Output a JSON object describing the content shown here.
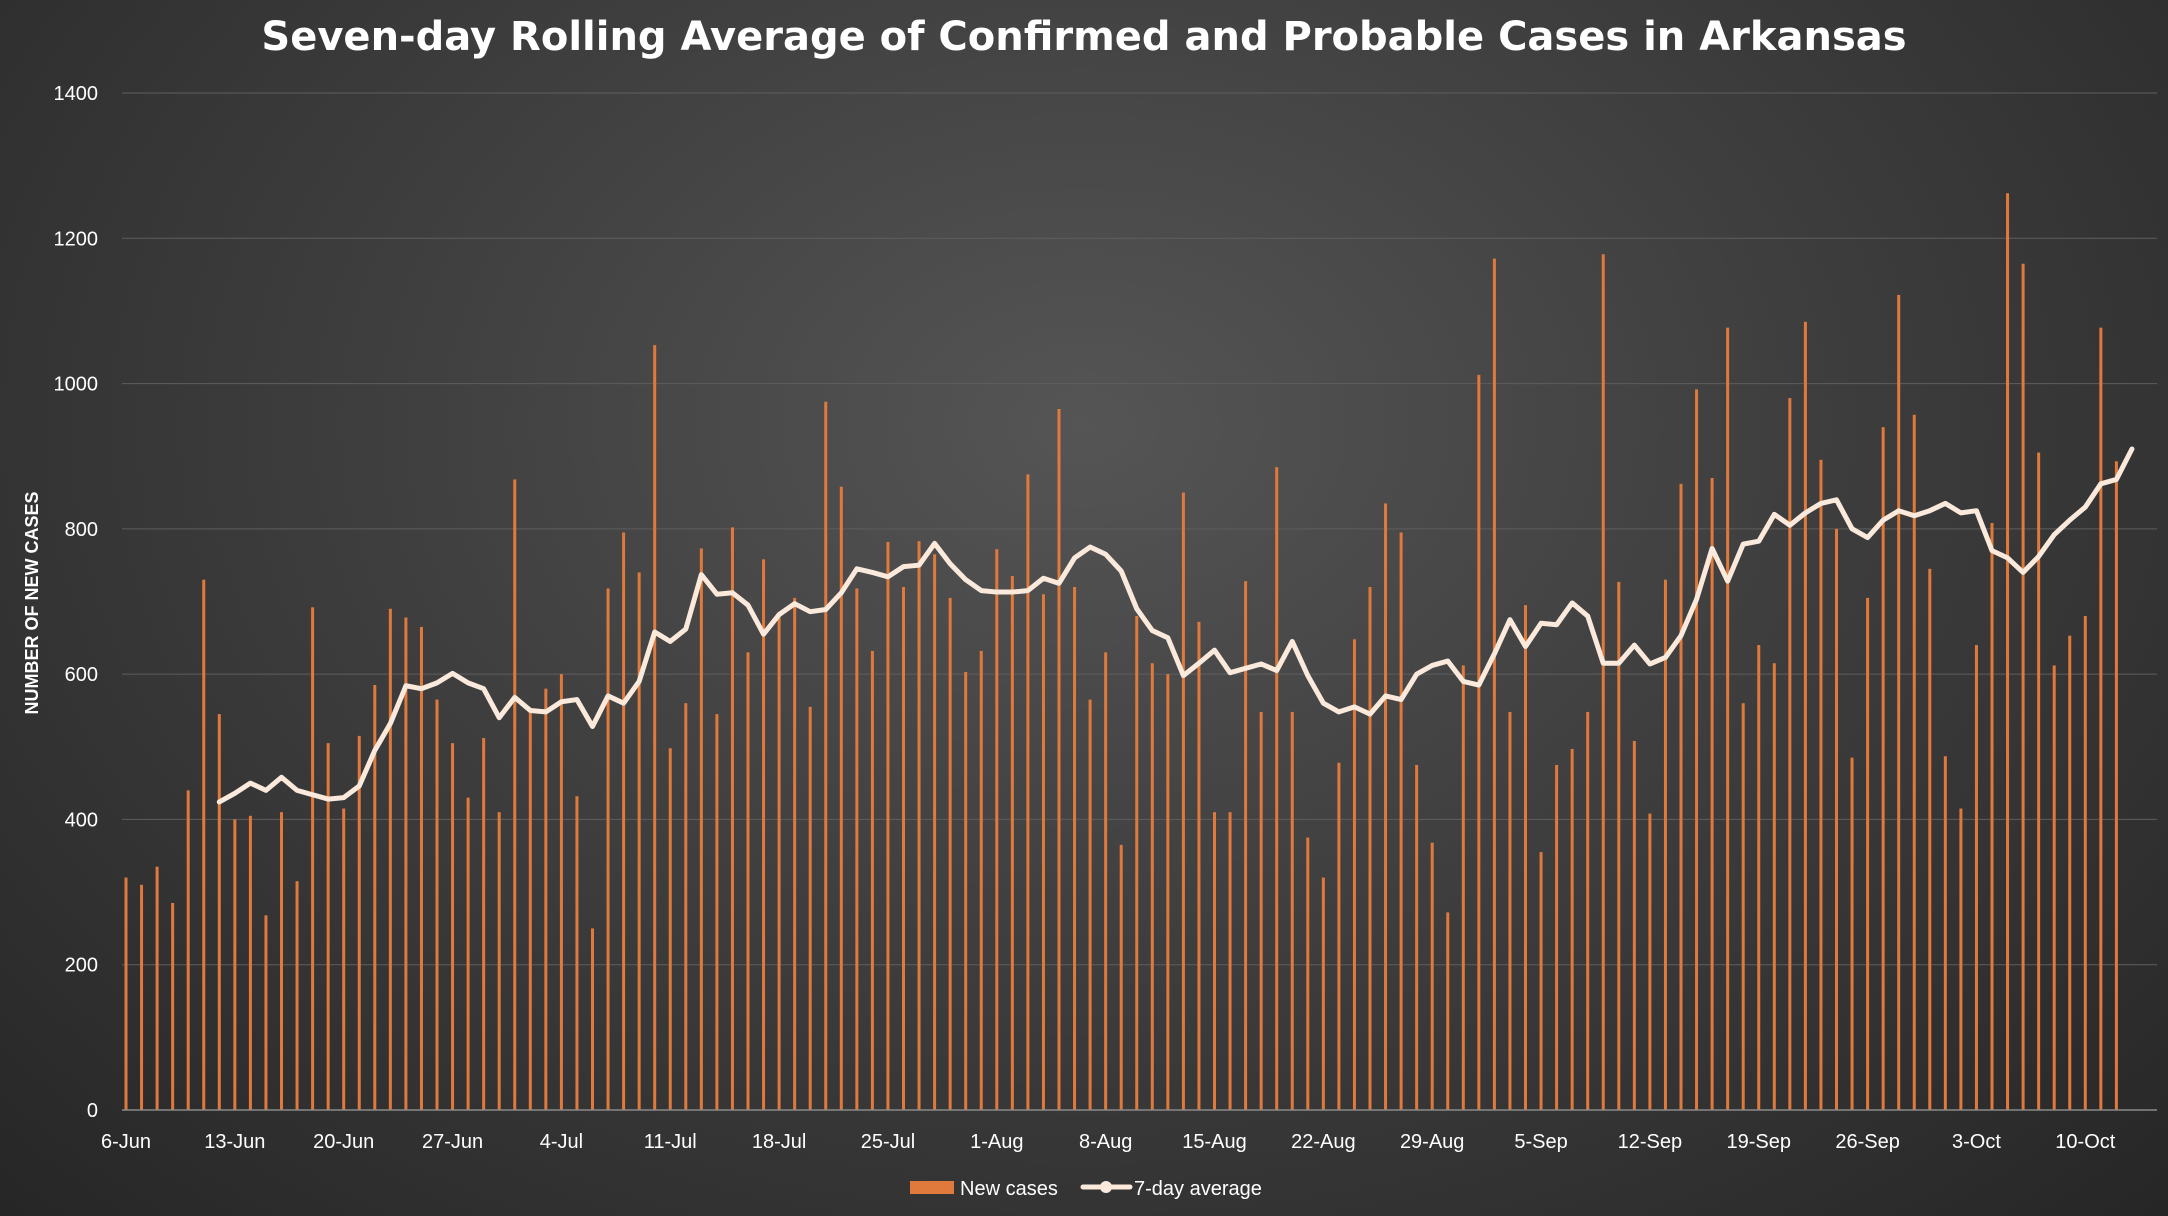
{
  "chart_data": {
    "type": "bar",
    "title": "Seven-day Rolling Average of Confirmed and Probable Cases in Arkansas",
    "xlabel": "",
    "ylabel": "NUMBER OF NEW CASES",
    "ylim": [
      0,
      1400
    ],
    "yticks": [
      "0",
      "200",
      "400",
      "600",
      "800",
      "1000",
      "1200",
      "1400"
    ],
    "xticks": [
      "6-Jun",
      "13-Jun",
      "20-Jun",
      "27-Jun",
      "4-Jul",
      "11-Jul",
      "18-Jul",
      "25-Jul",
      "1-Aug",
      "8-Aug",
      "15-Aug",
      "22-Aug",
      "29-Aug",
      "5-Sep",
      "12-Sep",
      "19-Sep",
      "26-Sep",
      "3-Oct",
      "10-Oct"
    ],
    "grid": true,
    "legend_position": "bottom",
    "colors": {
      "bars": "#e07a3c",
      "line": "#fbe9dc",
      "grid": "#5e5e5e"
    },
    "series": [
      {
        "name": "New cases",
        "type": "bar",
        "values": [
          320,
          310,
          335,
          285,
          440,
          730,
          545,
          400,
          405,
          268,
          410,
          315,
          692,
          505,
          415,
          515,
          585,
          690,
          678,
          665,
          565,
          505,
          430,
          512,
          410,
          868,
          550,
          580,
          600,
          432,
          250,
          718,
          795,
          740,
          1053,
          498,
          560,
          773,
          545,
          802,
          630,
          758,
          685,
          705,
          555,
          975,
          858,
          718,
          632,
          782,
          720,
          783,
          765,
          705,
          603,
          632,
          772,
          735,
          875,
          710,
          965,
          720,
          565,
          630,
          365,
          680,
          615,
          600,
          850,
          672,
          410,
          410,
          728,
          548,
          885,
          548,
          375,
          320,
          478,
          648,
          720,
          835,
          795,
          475,
          368,
          272,
          612,
          1012,
          1172,
          548,
          695,
          355,
          475,
          497,
          548,
          1178,
          727,
          508,
          408,
          730,
          862,
          992,
          870,
          1077,
          560,
          640,
          615,
          980,
          1085,
          895,
          800,
          485,
          705,
          940,
          1122,
          957,
          745,
          487,
          415,
          640,
          808,
          1262,
          1165,
          905,
          612,
          653,
          680,
          1077,
          893
        ]
      },
      {
        "name": "7-day average",
        "type": "line",
        "start_day": "12-Jun",
        "values": [
          424,
          436,
          450,
          440,
          458,
          440,
          434,
          428,
          430,
          446,
          495,
          532,
          584,
          580,
          588,
          601,
          588,
          580,
          540,
          568,
          550,
          548,
          562,
          565,
          528,
          570,
          560,
          590,
          658,
          645,
          662,
          737,
          710,
          712,
          695,
          655,
          682,
          697,
          686,
          689,
          712,
          745,
          740,
          734,
          748,
          750,
          780,
          752,
          730,
          715,
          713,
          713,
          715,
          732,
          725,
          760,
          775,
          765,
          742,
          690,
          660,
          650,
          598,
          615,
          633,
          602,
          608,
          614,
          605,
          645,
          598,
          560,
          548,
          555,
          545,
          570,
          565,
          600,
          612,
          618,
          590,
          585,
          628,
          675,
          638,
          670,
          668,
          698,
          680,
          615,
          615,
          640,
          614,
          623,
          653,
          703,
          773,
          728,
          779,
          783,
          820,
          805,
          822,
          835,
          840,
          800,
          788,
          812,
          825,
          818,
          825,
          835,
          822,
          825,
          770,
          760,
          740,
          762,
          792,
          812,
          830,
          862,
          868,
          910
        ]
      }
    ]
  }
}
